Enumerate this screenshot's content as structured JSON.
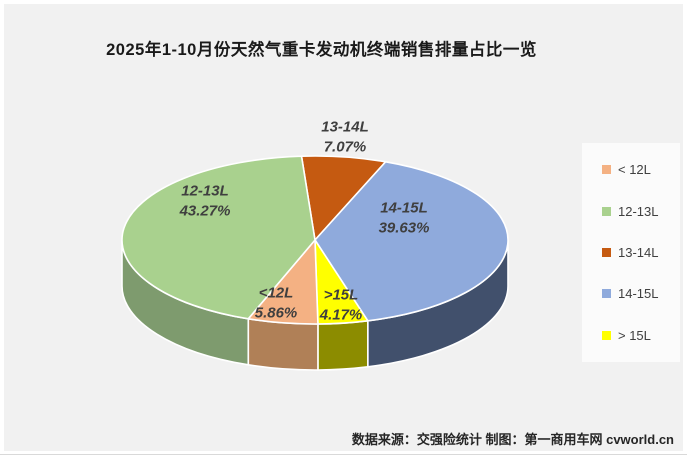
{
  "title": "2025年1-10月份天然气重卡发动机终端销售排量占比一览",
  "footer": {
    "text": "数据来源：交强险统计 制图：第一商用车网 cvworld.cn"
  },
  "colors": {
    "background": "#F1F1F1",
    "legend_background": "#FBFBFB",
    "title_text": "#1A1A1A",
    "pie_label_text": "#3F3F3F",
    "slice_separator": "#FFFFFF"
  },
  "chart_data": {
    "type": "pie",
    "is_3d": true,
    "title": "2025年1-10月份天然气重卡发动机终端销售排量占比一览",
    "legend_position": "right",
    "start_angle_deg": -4,
    "draw_order": [
      2,
      3,
      4,
      0,
      1
    ],
    "slices": [
      {
        "label_legend": "< 12L",
        "label_pie": "<12L",
        "value": 5.86,
        "pct_label": "5.86%",
        "color": "#F4B183",
        "side_color": "#B08057"
      },
      {
        "label_legend": "12-13L",
        "label_pie": "12-13L",
        "value": 43.27,
        "pct_label": "43.27%",
        "color": "#A9D18E",
        "side_color": "#7E9B6E"
      },
      {
        "label_legend": "13-14L",
        "label_pie": "13-14L",
        "value": 7.07,
        "pct_label": "7.07%",
        "color": "#C55A11",
        "side_color": "#8E410C"
      },
      {
        "label_legend": "14-15L",
        "label_pie": "14-15L",
        "value": 39.63,
        "pct_label": "39.63%",
        "color": "#8FAADC",
        "side_color": "#41506C"
      },
      {
        "label_legend": "> 15L",
        "label_pie": ">15L",
        "value": 4.17,
        "pct_label": "4.17%",
        "color": "#FFFF00",
        "side_color": "#8C8C00"
      }
    ]
  }
}
